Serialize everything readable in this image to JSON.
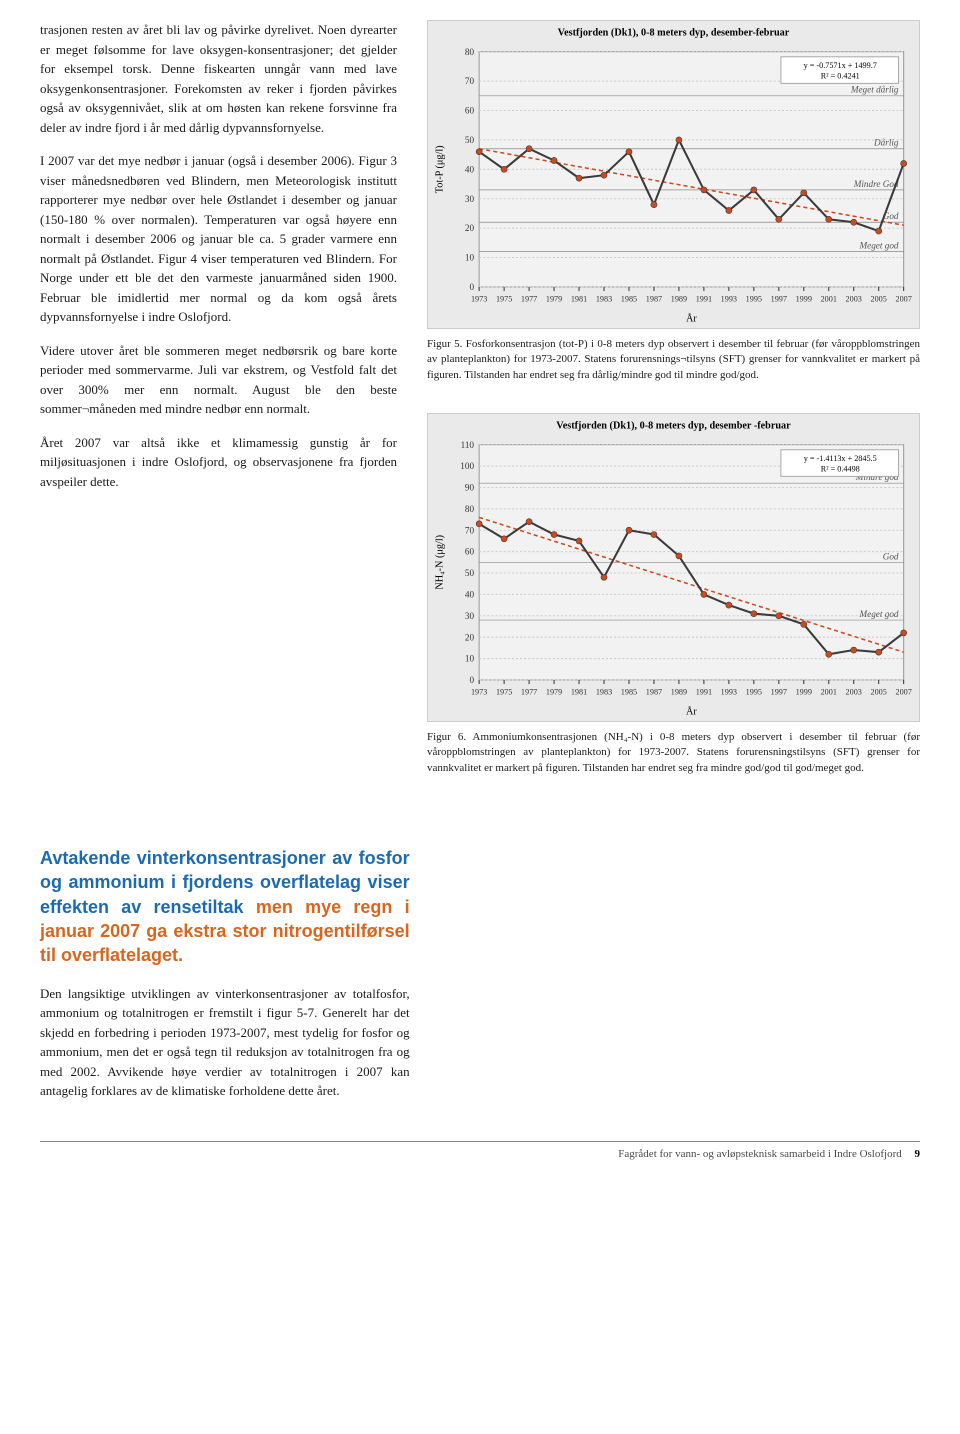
{
  "leftCol": {
    "p1": "trasjonen resten av året bli lav og påvirke dyrelivet. Noen dyrearter er meget følsomme for lave oksygen-konsentrasjoner; det gjelder for eksempel torsk. Denne fiskearten unngår vann med lave oksygenkonsentrasjoner. Forekomsten av reker i fjorden påvirkes også av oksygennivået, slik at om høsten kan rekene forsvinne fra deler av indre fjord i år med dårlig dypvannsfornyelse.",
    "p2": "I 2007 var det mye nedbør i januar (også i desember 2006). Figur 3 viser månedsnedbøren ved Blindern, men Meteorologisk institutt rapporterer mye nedbør over hele Østlandet i desember og januar (150-180 % over normalen). Temperaturen var også høyere enn normalt i desember 2006 og januar ble ca. 5 grader varmere enn normalt på Østlandet. Figur 4 viser temperaturen ved Blindern. For Norge under ett ble det den varmeste januarmåned siden 1900. Februar ble imidlertid mer normal og da kom også årets dypvannsfornyelse i indre Oslofjord.",
    "p3": "Videre utover året ble sommeren meget nedbørsrik og bare korte perioder med sommervarme. Juli var ekstrem, og Vestfold falt det over 300% mer enn normalt. August ble den beste sommer¬måneden med mindre nedbør enn normalt.",
    "p4": "Året 2007 var altså ikke et klimamessig gunstig år for miljøsituasjonen i indre Oslofjord, og observasjonene fra fjorden avspeiler dette."
  },
  "chart1": {
    "type": "line",
    "title": "Vestfjorden (Dk1), 0-8 meters dyp, desember-februar",
    "title_fontsize": 10,
    "ylabel": "Tot-P (μg/l)",
    "xlabel": "År",
    "ylim": [
      0,
      80
    ],
    "ytick_step": 10,
    "xlim": [
      1973,
      2007
    ],
    "xtick_step": 2,
    "background_color": "#eaeaea",
    "grid_color": "#cccccc",
    "series": {
      "main": {
        "color": "#3a3a3a",
        "width": 2,
        "marker": "circle",
        "marker_color": "#c94a1f",
        "x": [
          1973,
          1975,
          1977,
          1979,
          1981,
          1983,
          1985,
          1987,
          1989,
          1991,
          1993,
          1995,
          1997,
          1999,
          2001,
          2003,
          2005,
          2007
        ],
        "y": [
          46,
          40,
          47,
          43,
          37,
          38,
          46,
          28,
          50,
          33,
          26,
          33,
          23,
          32,
          23,
          22,
          19,
          42
        ]
      },
      "trend": {
        "color": "#c94a1f",
        "width": 1.5,
        "dash": "4 3",
        "x": [
          1973,
          2007
        ],
        "y": [
          47,
          21
        ]
      }
    },
    "equation": {
      "text1": "y = -0.7571x + 1499.7",
      "text2": "R² = 0.4241"
    },
    "bands": [
      {
        "label": "Meget dårlig",
        "y": 65
      },
      {
        "label": "Dårlig",
        "y": 47
      },
      {
        "label": "Mindre God",
        "y": 33
      },
      {
        "label": "God",
        "y": 22
      },
      {
        "label": "Meget god",
        "y": 12
      }
    ]
  },
  "caption1": "Figur 5. Fosforkonsentrasjon (tot-P) i 0-8 meters dyp observert i desember til februar (før våroppblomstringen av planteplankton) for 1973-2007. Statens forurensnings¬tilsyns (SFT) grenser for vannkvalitet er markert på figuren. Tilstanden har endret seg fra dårlig/mindre god til mindre god/god.",
  "chart2": {
    "type": "line",
    "title": "Vestfjorden (Dk1), 0-8 meters dyp, desember -februar",
    "title_fontsize": 10,
    "ylabel": "NH₄-N (μg/l)",
    "xlabel": "År",
    "ylim": [
      0,
      110
    ],
    "ytick_step": 10,
    "xlim": [
      1973,
      2007
    ],
    "xtick_step": 2,
    "background_color": "#eaeaea",
    "grid_color": "#cccccc",
    "series": {
      "main": {
        "color": "#3a3a3a",
        "width": 2,
        "marker": "circle",
        "marker_color": "#c94a1f",
        "x": [
          1973,
          1975,
          1977,
          1979,
          1981,
          1983,
          1985,
          1987,
          1989,
          1991,
          1993,
          1995,
          1997,
          1999,
          2001,
          2003,
          2005,
          2007
        ],
        "y": [
          73,
          66,
          74,
          68,
          65,
          48,
          70,
          68,
          58,
          40,
          35,
          31,
          30,
          26,
          12,
          14,
          13,
          22
        ]
      },
      "trend": {
        "color": "#c94a1f",
        "width": 1.5,
        "dash": "4 3",
        "x": [
          1973,
          2007
        ],
        "y": [
          76,
          13
        ]
      }
    },
    "equation": {
      "text1": "y = -1.4113x + 2845.5",
      "text2": "R² = 0.4498"
    },
    "bands": [
      {
        "label": "Mindre god",
        "y": 92
      },
      {
        "label": "God",
        "y": 55
      },
      {
        "label": "Meget god",
        "y": 28
      }
    ]
  },
  "caption2": "Figur 6. Ammoniumkonsentrasjonen (NH₄-N) i 0-8 meters dyp observert i desember til februar (før våroppblomstringen av planteplankton) for 1973-2007. Statens forurensningstilsyns (SFT) grenser for vannkvalitet er markert på figuren. Tilstanden har endret seg fra mindre god/god til god/meget god.",
  "sectionHeading": {
    "line1_blue": "Avtakende vinterkonsentrasjoner av fosfor og ammonium i fjordens overflatelag viser effekten av rensetiltak",
    "line2_orange": " men mye regn i januar 2007 ga ekstra stor nitrogentilførsel til overflatelaget."
  },
  "lowerPara": "Den langsiktige utviklingen av vinterkonsentrasjoner av totalfosfor, ammonium og totalnitrogen er fremstilt i figur 5-7. Generelt har det skjedd en forbedring i perioden 1973-2007, mest tydelig for fosfor og ammonium, men det er også tegn til reduksjon av totalnitrogen fra og med 2002. Avvikende høye verdier av totalnitrogen i 2007 kan antagelig forklares av de klimatiske forholdene dette året.",
  "footer": {
    "text": "Fagrådet for vann- og avløpsteknisk samarbeid i Indre Oslofjord",
    "page": "9"
  }
}
